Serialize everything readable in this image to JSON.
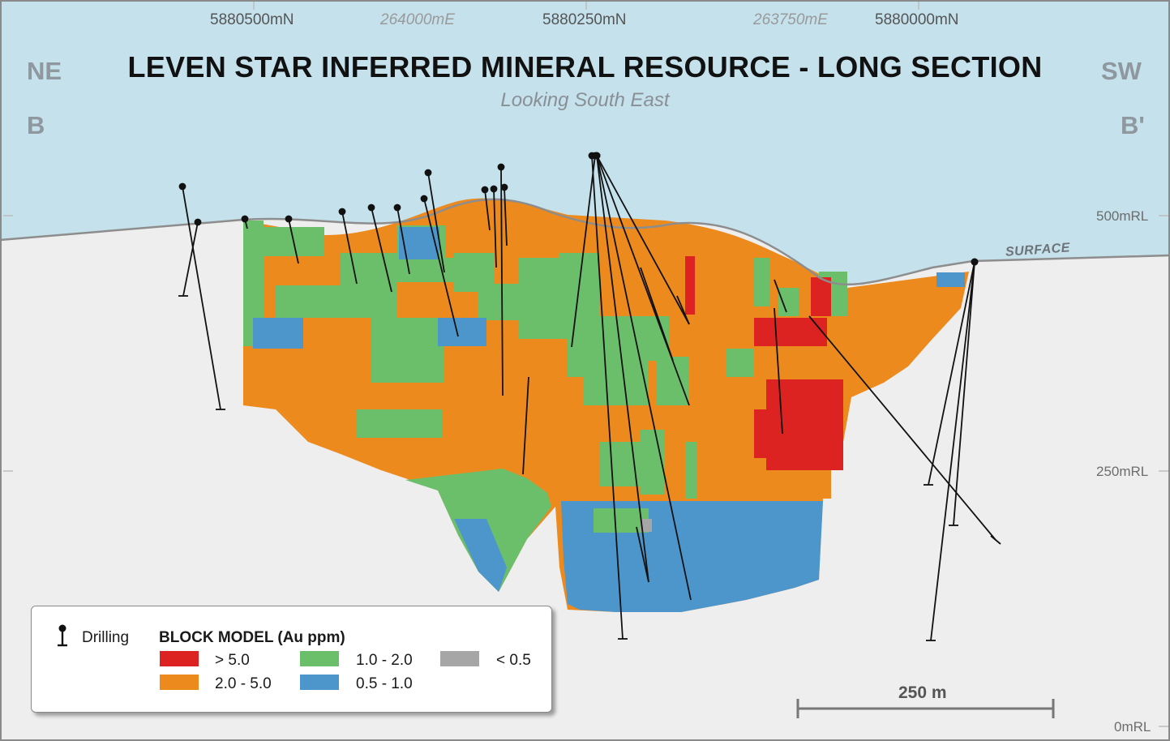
{
  "title": "LEVEN STAR INFERRED MINERAL RESOURCE - LONG SECTION",
  "subtitle": "Looking South East",
  "orientation": {
    "left_direction": "NE",
    "right_direction": "SW",
    "left_section_end": "B",
    "right_section_end": "B'"
  },
  "grid_labels": {
    "northings": [
      "5880500mN",
      "5880250mN",
      "5880000mN"
    ],
    "eastings": [
      "264000mE",
      "263750mE"
    ],
    "elevations": [
      "500mRL",
      "250mRL",
      "0mRL"
    ]
  },
  "surface_label": "SURFACE",
  "legend": {
    "drilling_label": "Drilling",
    "block_model_title": "BLOCK MODEL (Au ppm)",
    "classes": [
      {
        "label": "> 5.0",
        "color": "#dd2222"
      },
      {
        "label": "2.0 - 5.0",
        "color": "#ec8a1e"
      },
      {
        "label": "1.0 - 2.0",
        "color": "#6bbf6b"
      },
      {
        "label": "0.5 - 1.0",
        "color": "#4d96cc"
      },
      {
        "label": "< 0.5",
        "color": "#a6a6a6"
      }
    ]
  },
  "scale_bar": {
    "label": "250 m"
  },
  "colors": {
    "sky": "#c4e1ec",
    "ground": "#eeeeee",
    "surface_line": "#8d8d8d",
    "drill": "#111111"
  }
}
